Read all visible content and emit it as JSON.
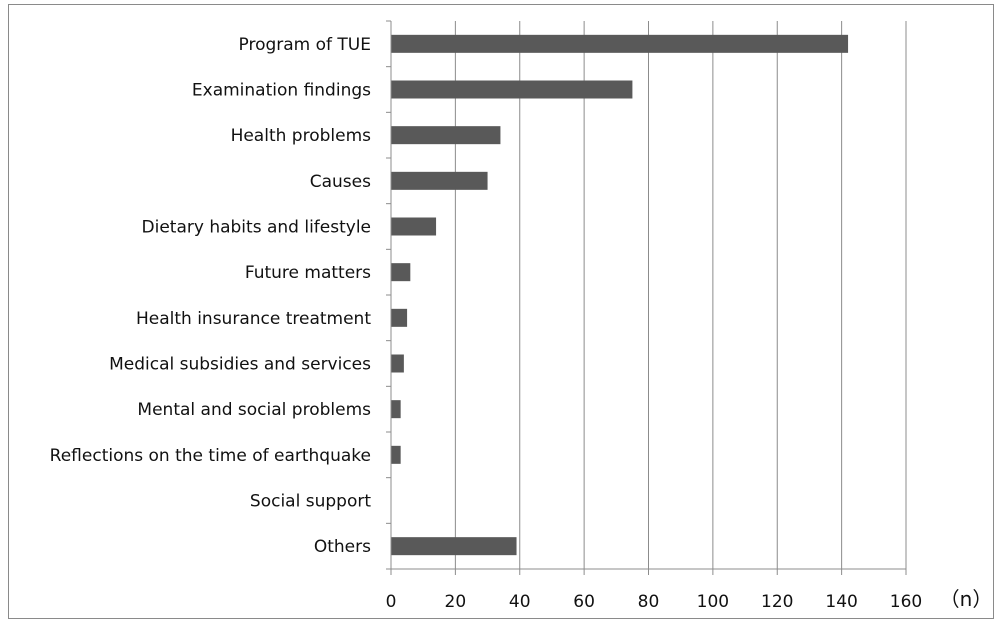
{
  "chart_data": {
    "type": "bar",
    "orientation": "horizontal",
    "categories": [
      "Program of TUE",
      "Examination findings",
      "Health problems",
      "Causes",
      "Dietary habits and lifestyle",
      "Future matters",
      "Health insurance treatment",
      "Medical subsidies and services",
      "Mental and social problems",
      "Reflections on the time of earthquake",
      "Social support",
      "Others"
    ],
    "values": [
      142,
      75,
      34,
      30,
      14,
      6,
      5,
      4,
      3,
      3,
      0,
      39
    ],
    "title": "",
    "xlabel": "",
    "ylabel": "",
    "unit_label": "（n）",
    "xlim": [
      0,
      160
    ],
    "xticks": [
      "0",
      "20",
      "40",
      "60",
      "80",
      "100",
      "120",
      "140",
      "160"
    ],
    "grid": "vertical",
    "legend": "none",
    "bar_color": "#595959",
    "grid_color": "#8c8c8c"
  }
}
